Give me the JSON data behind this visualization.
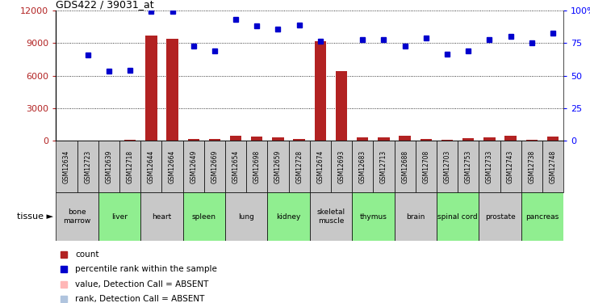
{
  "title": "GDS422 / 39031_at",
  "samples": [
    "GSM12634",
    "GSM12723",
    "GSM12639",
    "GSM12718",
    "GSM12644",
    "GSM12664",
    "GSM12649",
    "GSM12669",
    "GSM12654",
    "GSM12698",
    "GSM12659",
    "GSM12728",
    "GSM12674",
    "GSM12693",
    "GSM12683",
    "GSM12713",
    "GSM12688",
    "GSM12708",
    "GSM12703",
    "GSM12753",
    "GSM12733",
    "GSM12743",
    "GSM12738",
    "GSM12748"
  ],
  "tissues": [
    {
      "name": "bone\nmarrow",
      "span": [
        0,
        1
      ],
      "color": "#c8c8c8"
    },
    {
      "name": "liver",
      "span": [
        2,
        3
      ],
      "color": "#90ee90"
    },
    {
      "name": "heart",
      "span": [
        4,
        5
      ],
      "color": "#c8c8c8"
    },
    {
      "name": "spleen",
      "span": [
        6,
        7
      ],
      "color": "#90ee90"
    },
    {
      "name": "lung",
      "span": [
        8,
        9
      ],
      "color": "#c8c8c8"
    },
    {
      "name": "kidney",
      "span": [
        10,
        11
      ],
      "color": "#90ee90"
    },
    {
      "name": "skeletal\nmuscle",
      "span": [
        12,
        13
      ],
      "color": "#c8c8c8"
    },
    {
      "name": "thymus",
      "span": [
        14,
        15
      ],
      "color": "#90ee90"
    },
    {
      "name": "brain",
      "span": [
        16,
        17
      ],
      "color": "#c8c8c8"
    },
    {
      "name": "spinal cord",
      "span": [
        18,
        19
      ],
      "color": "#90ee90"
    },
    {
      "name": "prostate",
      "span": [
        20,
        21
      ],
      "color": "#c8c8c8"
    },
    {
      "name": "pancreas",
      "span": [
        22,
        23
      ],
      "color": "#90ee90"
    }
  ],
  "bar_values": [
    50,
    50,
    50,
    100,
    9700,
    9400,
    200,
    200,
    500,
    400,
    300,
    200,
    9200,
    6400,
    300,
    300,
    500,
    200,
    100,
    250,
    300,
    500,
    100,
    400
  ],
  "dot_values": [
    null,
    7900,
    6400,
    6500,
    11900,
    11900,
    8700,
    8300,
    11200,
    10600,
    10300,
    10700,
    9200,
    null,
    9300,
    9300,
    8700,
    9500,
    8000,
    8300,
    9300,
    9600,
    9000,
    9900
  ],
  "absent_bar_indices": [
    0
  ],
  "absent_dot_indices": [
    0
  ],
  "ylim_left": [
    0,
    12000
  ],
  "ylim_right": [
    0,
    100
  ],
  "yticks_left": [
    0,
    3000,
    6000,
    9000,
    12000
  ],
  "yticks_right": [
    0,
    25,
    50,
    75,
    100
  ],
  "bar_color": "#b22222",
  "bar_absent_color": "#ffb6b6",
  "dot_color": "#0000cd",
  "dot_absent_color": "#b0c4de",
  "sample_bg_color": "#c8c8c8",
  "legend_items": [
    {
      "label": "count",
      "color": "#b22222",
      "marker": "s",
      "size": 6
    },
    {
      "label": "percentile rank within the sample",
      "color": "#0000cd",
      "marker": "s",
      "size": 6
    },
    {
      "label": "value, Detection Call = ABSENT",
      "color": "#ffb6b6",
      "marker": "s",
      "size": 6
    },
    {
      "label": "rank, Detection Call = ABSENT",
      "color": "#b0c4de",
      "marker": "s",
      "size": 6
    }
  ]
}
